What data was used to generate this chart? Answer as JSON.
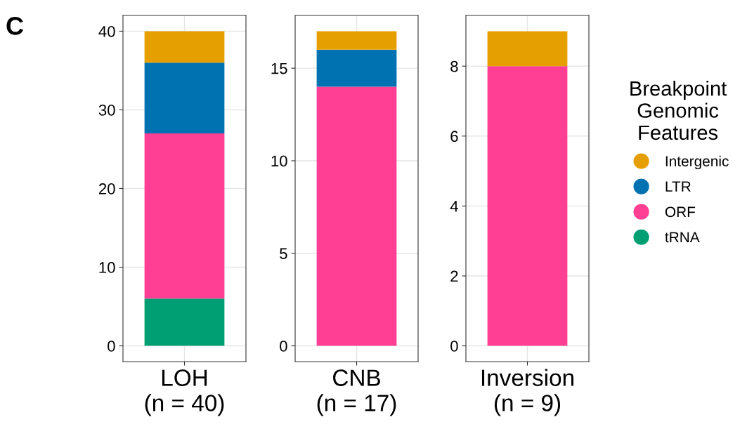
{
  "chart_data": [
    {
      "type": "bar",
      "stacked": true,
      "categories": [
        "LOH\n(n = 40)"
      ],
      "ylim": [
        -2,
        42
      ],
      "yticks": [
        0,
        10,
        20,
        30,
        40
      ],
      "grid": true,
      "annotations": [
        "C"
      ],
      "legend": "right",
      "legend_title": "Breakpoint\nGenomic\nFeatures",
      "series": [
        {
          "name": "tRNA",
          "color": "#009e73",
          "values": [
            6
          ]
        },
        {
          "name": "ORF",
          "color": "#ff3f94",
          "values": [
            21
          ]
        },
        {
          "name": "LTR",
          "color": "#0072b2",
          "values": [
            9
          ]
        },
        {
          "name": "Intergenic",
          "color": "#e69f00",
          "values": [
            4
          ]
        }
      ]
    },
    {
      "type": "bar",
      "stacked": true,
      "categories": [
        "CNB\n(n = 17)"
      ],
      "ylim": [
        -0.85,
        17.85
      ],
      "yticks": [
        0,
        5,
        10,
        15
      ],
      "grid": true,
      "series": [
        {
          "color": "#ff3f94",
          "values": [
            14
          ]
        },
        {
          "color": "#0072b2",
          "values": [
            2
          ]
        },
        {
          "color": "#e69f00",
          "values": [
            1
          ]
        }
      ]
    },
    {
      "type": "bar",
      "stacked": true,
      "categories": [
        "Inversion\n(n = 9)"
      ],
      "ylim": [
        -0.45,
        9.45
      ],
      "yticks": [
        0,
        2,
        4,
        6,
        8
      ],
      "grid": true,
      "series": [
        {
          "color": "#ff3f94",
          "values": [
            8
          ]
        },
        {
          "color": "#e69f00",
          "values": [
            1
          ]
        }
      ]
    }
  ]
}
